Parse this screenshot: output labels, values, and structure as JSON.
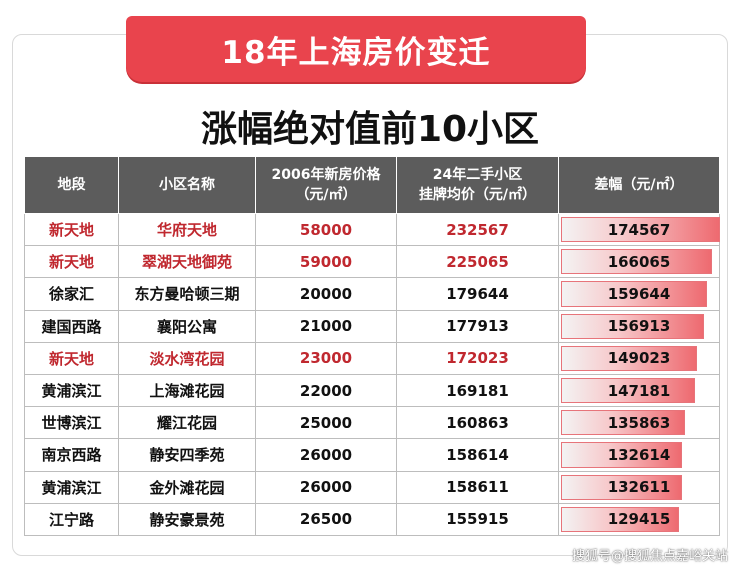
{
  "banner_title": "18年上海房价变迁",
  "subtitle": "涨幅绝对值前10小区",
  "headers": {
    "district": "地段",
    "community": "小区名称",
    "price2006_line1": "2006年新房价格",
    "price2006_line2": "（元/㎡）",
    "price2024_line1": "24年二手小区",
    "price2024_line2": "挂牌均价（元/㎡）",
    "diff": "差幅（元/㎡）"
  },
  "rows": [
    {
      "district": "新天地",
      "community": "华府天地",
      "p2006": "58000",
      "p2024": "232567",
      "diff": "174567",
      "diff_value": 174567,
      "highlight": true
    },
    {
      "district": "新天地",
      "community": "翠湖天地御苑",
      "p2006": "59000",
      "p2024": "225065",
      "diff": "166065",
      "diff_value": 166065,
      "highlight": true
    },
    {
      "district": "徐家汇",
      "community": "东方曼哈顿三期",
      "p2006": "20000",
      "p2024": "179644",
      "diff": "159644",
      "diff_value": 159644,
      "highlight": false
    },
    {
      "district": "建国西路",
      "community": "襄阳公寓",
      "p2006": "21000",
      "p2024": "177913",
      "diff": "156913",
      "diff_value": 156913,
      "highlight": false
    },
    {
      "district": "新天地",
      "community": "淡水湾花园",
      "p2006": "23000",
      "p2024": "172023",
      "diff": "149023",
      "diff_value": 149023,
      "highlight": true
    },
    {
      "district": "黄浦滨江",
      "community": "上海滩花园",
      "p2006": "22000",
      "p2024": "169181",
      "diff": "147181",
      "diff_value": 147181,
      "highlight": false
    },
    {
      "district": "世博滨江",
      "community": "耀江花园",
      "p2006": "25000",
      "p2024": "160863",
      "diff": "135863",
      "diff_value": 135863,
      "highlight": false
    },
    {
      "district": "南京西路",
      "community": "静安四季苑",
      "p2006": "26000",
      "p2024": "158614",
      "diff": "132614",
      "diff_value": 132614,
      "highlight": false
    },
    {
      "district": "黄浦滨江",
      "community": "金外滩花园",
      "p2006": "26000",
      "p2024": "158611",
      "diff": "132611",
      "diff_value": 132611,
      "highlight": false
    },
    {
      "district": "江宁路",
      "community": "静安豪景苑",
      "p2006": "26500",
      "p2024": "155915",
      "diff": "129415",
      "diff_value": 129415,
      "highlight": false
    }
  ],
  "watermark": "搜狐号@搜狐焦点嘉峪关站",
  "colors": {
    "banner": "#e9444d",
    "header_bg": "#5c5c5c",
    "highlight_text": "#c0282f",
    "bar": "#ee6a70"
  }
}
